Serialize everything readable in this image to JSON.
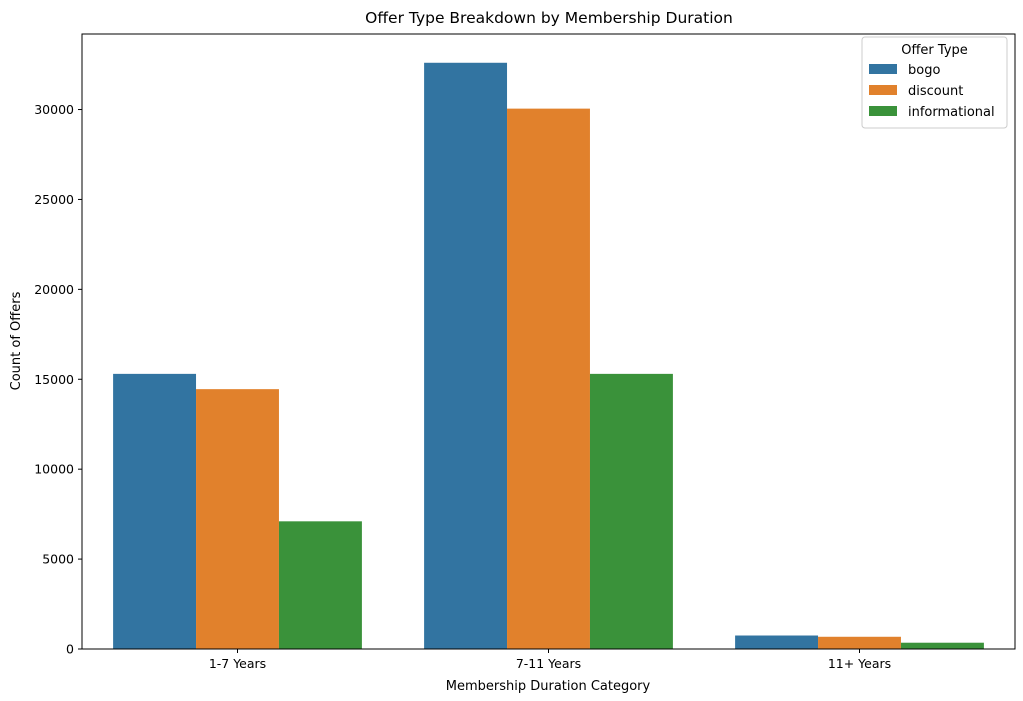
{
  "chart_data": {
    "type": "bar",
    "title": "Offer Type Breakdown by Membership Duration",
    "xlabel": "Membership Duration Category",
    "ylabel": "Count of Offers",
    "categories": [
      "1-7 Years",
      "7-11 Years",
      "11+ Years"
    ],
    "series": [
      {
        "name": "bogo",
        "color": "#3274a1",
        "values": [
          15300,
          32600,
          750
        ]
      },
      {
        "name": "discount",
        "color": "#e1812c",
        "values": [
          14450,
          30050,
          680
        ]
      },
      {
        "name": "informational",
        "color": "#3a923a",
        "values": [
          7100,
          15300,
          350
        ]
      }
    ],
    "ylim": [
      0,
      34200
    ],
    "yticks": [
      0,
      5000,
      10000,
      15000,
      20000,
      25000,
      30000
    ],
    "grid": false,
    "legend": {
      "title": "Offer Type",
      "placement": "top-right"
    }
  }
}
